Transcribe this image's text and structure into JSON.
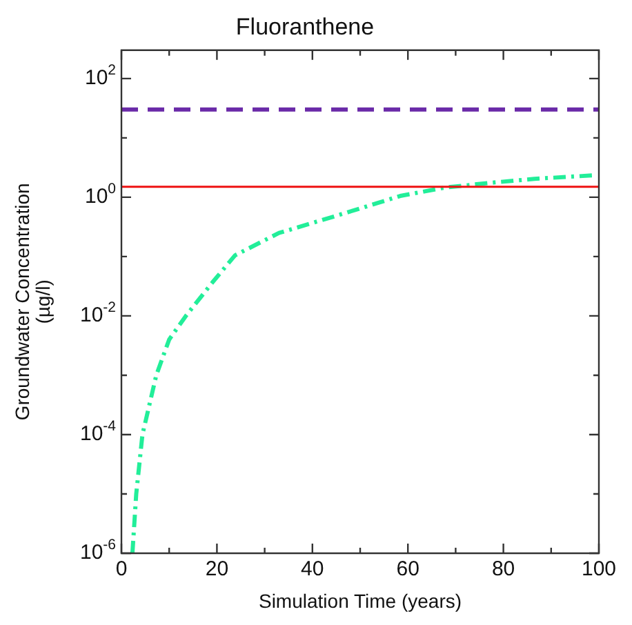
{
  "chart_data": {
    "type": "line",
    "title": "Fluoranthene",
    "xlabel": "Simulation Time (years)",
    "ylabel": "Groundwater Concentration\n(µg/l)",
    "log": "y",
    "xlim": [
      0,
      100
    ],
    "ylim": [
      1e-06,
      300
    ],
    "xticks": [
      0,
      {
        "value": 10,
        "label": null
      },
      20,
      {
        "value": 30,
        "label": null
      },
      40,
      {
        "value": 50,
        "label": null
      },
      60,
      {
        "value": 70,
        "label": null
      },
      80,
      {
        "value": 90,
        "label": null
      },
      100
    ],
    "yticks": [
      {
        "value": 1e-06,
        "label": "10$^{-6}$"
      },
      {
        "value": 1e-05,
        "label": null
      },
      {
        "value": 0.0001,
        "label": "10$^{-4}$"
      },
      {
        "value": 0.001,
        "label": null
      },
      {
        "value": 0.01,
        "label": "10$^{-2}$"
      },
      {
        "value": 0.1,
        "label": null
      },
      {
        "value": 1,
        "label": "10$^{0}$"
      },
      {
        "value": 10,
        "label": null
      },
      {
        "value": 100,
        "label": "10$^{2}$"
      }
    ],
    "series": [
      {
        "color": "#22ee99",
        "line_style": "dashed",
        "x": [
          2.3,
          3.1,
          4.4,
          7.3,
          10,
          13.5,
          19.1,
          23.8,
          33,
          44.4,
          53.7,
          58.4,
          67.7,
          77,
          86.5,
          99
        ],
        "values": [
          1e-06,
          1e-05,
          0.0001,
          0.001,
          0.004,
          0.01,
          0.037,
          0.105,
          0.25,
          0.47,
          0.8,
          1.05,
          1.45,
          1.74,
          2.04,
          2.34
        ]
      }
    ],
    "ref_lines": [
      {
        "axis": "y",
        "value": 30,
        "color": "#6a2aa8",
        "line_style": "dashed"
      },
      {
        "axis": "y",
        "value": 1.5,
        "color": "#ee1111",
        "line_style": "solid"
      }
    ],
    "grid": false,
    "legend": false,
    "marker": "none"
  }
}
